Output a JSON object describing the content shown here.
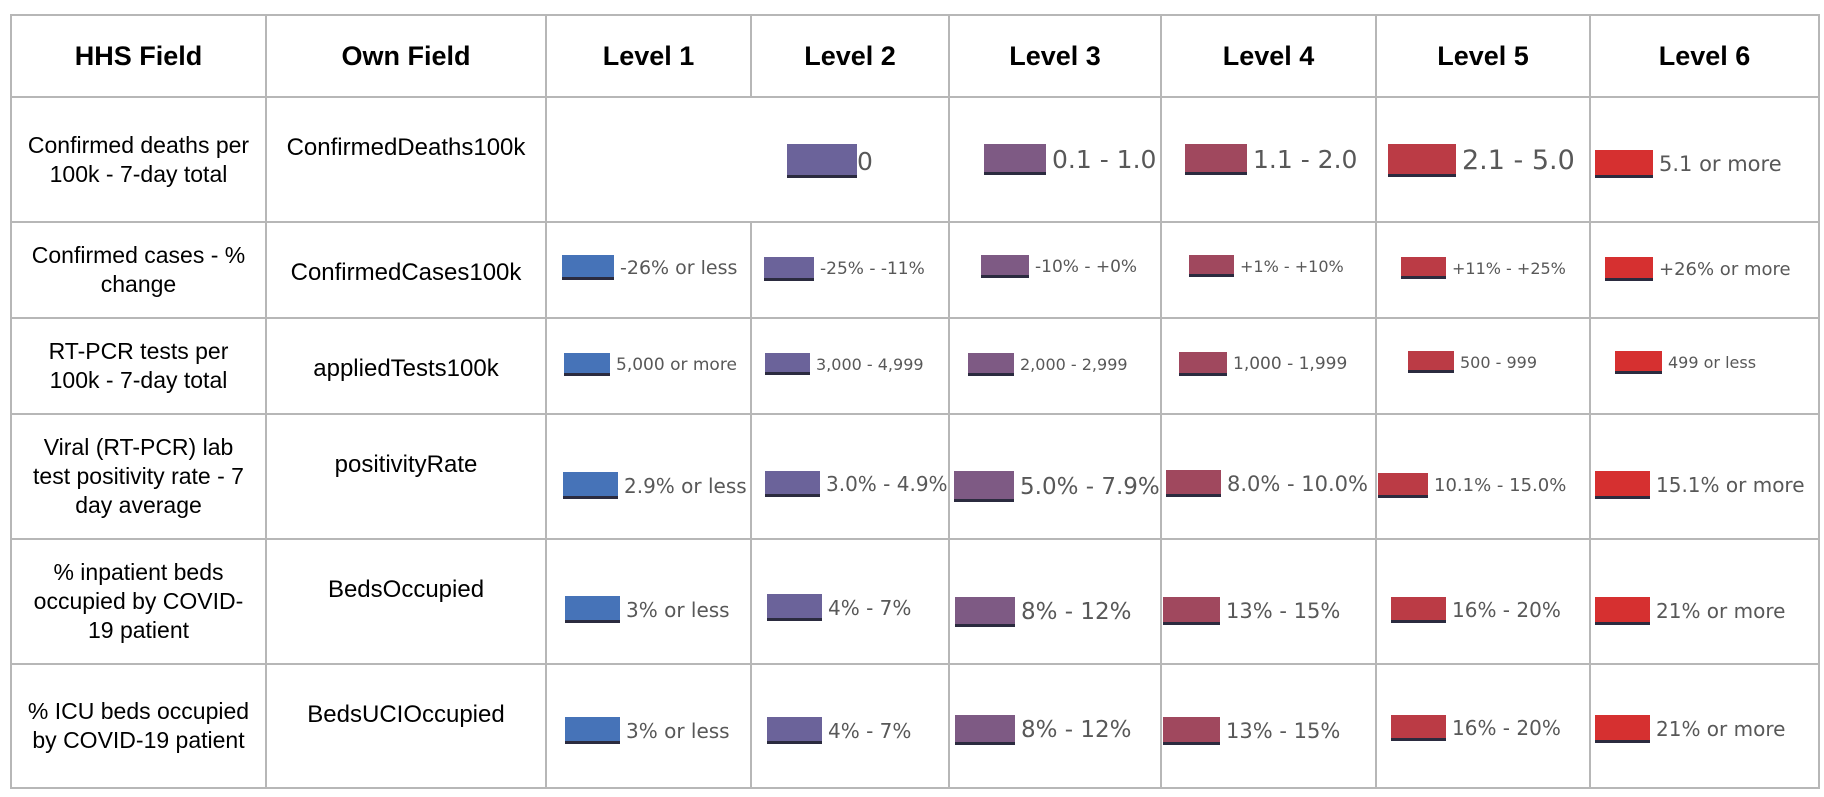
{
  "headers": [
    "HHS Field",
    "Own Field",
    "Level 1",
    "Level 2",
    "Level 3",
    "Level 4",
    "Level 5",
    "Level 6"
  ],
  "level_colors": [
    "#4673b8",
    "#6b639a",
    "#7e5a84",
    "#a0485e",
    "#bb3b45",
    "#d63030"
  ],
  "rows": [
    {
      "hhs": "Confirmed deaths per 100k - 7-day total",
      "own": "ConfirmedDeaths100k",
      "levels": [
        "",
        "0",
        "0.1 - 1.0",
        "1.1 - 2.0",
        "2.1 - 5.0",
        "5.1 or more"
      ]
    },
    {
      "hhs": "Confirmed cases - % change",
      "own": "ConfirmedCases100k",
      "levels": [
        "-26% or less",
        "-25% - -11%",
        "-10% - +0%",
        "+1% - +10%",
        "+11% - +25%",
        "+26% or more"
      ]
    },
    {
      "hhs": "RT-PCR tests per 100k - 7-day total",
      "own": "appliedTests100k",
      "levels": [
        "5,000 or more",
        "3,000 - 4,999",
        "2,000 - 2,999",
        "1,000 - 1,999",
        "500 - 999",
        "499 or less"
      ]
    },
    {
      "hhs": "Viral (RT-PCR) lab test positivity rate - 7 day average",
      "own": "positivityRate",
      "levels": [
        "2.9% or less",
        "3.0% - 4.9%",
        "5.0% - 7.9%",
        "8.0% - 10.0%",
        "10.1% - 15.0%",
        "15.1% or more"
      ]
    },
    {
      "hhs": "% inpatient beds occupied by COVID-19 patient",
      "own": "BedsOccupied",
      "levels": [
        "3% or less",
        "4% - 7%",
        "8% - 12%",
        "13% - 15%",
        "16% - 20%",
        "21% or more"
      ]
    },
    {
      "hhs": "% ICU beds occupied by COVID-19 patient",
      "own": "BedsUCIOccupied",
      "levels": [
        "3% or less",
        "4% - 7%",
        "8% - 12%",
        "13% - 15%",
        "16% - 20%",
        "21% or more"
      ]
    }
  ]
}
